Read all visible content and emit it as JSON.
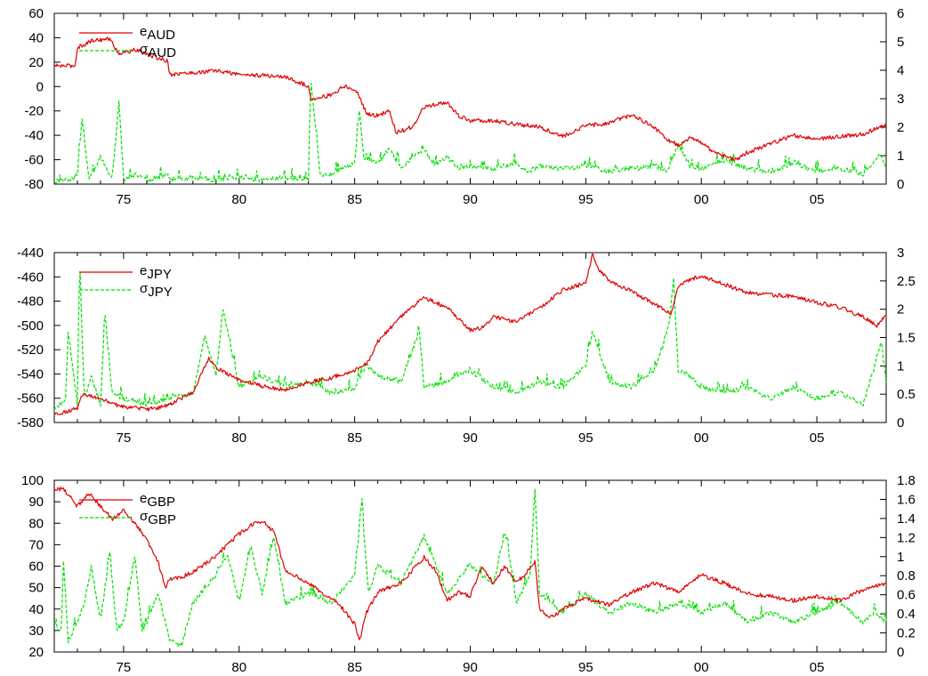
{
  "x_axis": {
    "min": 1972,
    "max": 2008,
    "ticks": [
      {
        "value": 1975,
        "label": "75"
      },
      {
        "value": 1980,
        "label": "80"
      },
      {
        "value": 1985,
        "label": "85"
      },
      {
        "value": 1990,
        "label": "90"
      },
      {
        "value": 1995,
        "label": "95"
      },
      {
        "value": 2000,
        "label": "00"
      },
      {
        "value": 2005,
        "label": "05"
      }
    ]
  },
  "colors": {
    "e": "#e00000",
    "sigma": "#00e000",
    "axis": "#000000"
  },
  "chart_data": [
    {
      "type": "line",
      "series": [
        {
          "name": "e_AUD",
          "symbol": "e",
          "sub": "AUD",
          "axis": "left",
          "style": "solid",
          "x": [
            1972,
            1972.9,
            1973,
            1973.7,
            1974.4,
            1974.8,
            1975.5,
            1976.4,
            1976.9,
            1977,
            1978.5,
            1979,
            1980,
            1981,
            1982,
            1983,
            1983.1,
            1984,
            1984.5,
            1985,
            1985.2,
            1985.5,
            1986,
            1986.5,
            1986.8,
            1987.5,
            1988,
            1989,
            1989.5,
            1990,
            1991,
            1992,
            1993,
            1994,
            1995,
            1996,
            1997,
            1998,
            1998.5,
            1999,
            1999.5,
            2000,
            2000.5,
            2001,
            2001.5,
            2002,
            2003,
            2004,
            2005,
            2006,
            2007,
            2007.5,
            2008
          ],
          "values": [
            17,
            17,
            32,
            38,
            39,
            27,
            30,
            24,
            21,
            10,
            12,
            13,
            10,
            9,
            8,
            0,
            -10,
            -7,
            0,
            -2,
            -8,
            -22,
            -24,
            -20,
            -38,
            -33,
            -17,
            -13,
            -24,
            -28,
            -28,
            -31,
            -33,
            -41,
            -32,
            -30,
            -23,
            -34,
            -43,
            -48,
            -42,
            -46,
            -53,
            -57,
            -60,
            -54,
            -47,
            -40,
            -43,
            -41,
            -39,
            -35,
            -32
          ]
        },
        {
          "name": "σ_AUD",
          "symbol": "σ",
          "sub": "AUD",
          "axis": "right",
          "style": "dashed",
          "x": [
            1972,
            1972.5,
            1973,
            1973.2,
            1973.5,
            1974,
            1974.5,
            1974.8,
            1975,
            1975.5,
            1976,
            1976.5,
            1976.9,
            1977,
            1978,
            1979,
            1980,
            1981,
            1982,
            1983,
            1983.1,
            1983.5,
            1984,
            1984.5,
            1985,
            1985.2,
            1985.4,
            1986,
            1986.5,
            1987,
            1987.5,
            1988,
            1988.5,
            1989,
            1989.5,
            1990,
            1991,
            1992,
            1992.5,
            1993,
            1994,
            1995,
            1996,
            1997,
            1998,
            1998.5,
            1999,
            1999.5,
            2000,
            2001,
            2002,
            2003,
            2004,
            2005,
            2006,
            2007,
            2007.7,
            2008
          ],
          "values": [
            0.05,
            0.1,
            0.2,
            2.3,
            0.1,
            0.9,
            0.1,
            2.9,
            0.1,
            0.3,
            0.1,
            0.2,
            0.3,
            0.1,
            0.2,
            0.1,
            0.2,
            0.1,
            0.2,
            0.1,
            3.6,
            0.3,
            0.3,
            0.5,
            0.7,
            2.6,
            0.9,
            0.7,
            1.2,
            0.5,
            0.9,
            1.2,
            0.6,
            0.9,
            0.5,
            0.6,
            0.5,
            0.7,
            0.4,
            0.6,
            0.5,
            0.6,
            0.4,
            0.5,
            0.6,
            0.4,
            1.3,
            0.6,
            0.5,
            0.8,
            0.5,
            0.4,
            0.7,
            0.4,
            0.5,
            0.3,
            1.0,
            0.6
          ]
        }
      ],
      "left_axis": {
        "min": -80,
        "max": 60,
        "ticks": [
          "-80",
          "-60",
          "-40",
          "-20",
          "0",
          "20",
          "40",
          "60"
        ]
      },
      "right_axis": {
        "min": 0,
        "max": 6,
        "ticks": [
          "0",
          "1",
          "2",
          "3",
          "4",
          "5",
          "6"
        ]
      }
    },
    {
      "type": "line",
      "series": [
        {
          "name": "e_JPY",
          "symbol": "e",
          "sub": "JPY",
          "axis": "left",
          "style": "solid",
          "x": [
            1972,
            1972.5,
            1973,
            1973.2,
            1974,
            1974.5,
            1975,
            1976,
            1976.5,
            1977,
            1978,
            1978.7,
            1979,
            1980,
            1981,
            1982,
            1983,
            1984,
            1985,
            1985.6,
            1985.8,
            1986,
            1987,
            1988,
            1989,
            1990,
            1990.5,
            1991,
            1992,
            1993,
            1994,
            1995,
            1995.3,
            1995.6,
            1996,
            1997,
            1998,
            1998.7,
            1999,
            1999.5,
            2000,
            2001,
            2002,
            2003,
            2004,
            2005,
            2006,
            2007,
            2007.6,
            2008
          ],
          "values": [
            -573,
            -571,
            -568,
            -557,
            -560,
            -565,
            -567,
            -569,
            -568,
            -565,
            -555,
            -527,
            -535,
            -545,
            -550,
            -553,
            -547,
            -543,
            -537,
            -530,
            -522,
            -513,
            -493,
            -477,
            -485,
            -504,
            -502,
            -493,
            -497,
            -486,
            -471,
            -465,
            -441,
            -455,
            -463,
            -472,
            -483,
            -490,
            -467,
            -462,
            -459,
            -466,
            -473,
            -475,
            -476,
            -481,
            -485,
            -493,
            -500,
            -492
          ]
        },
        {
          "name": "σ_JPY",
          "symbol": "σ",
          "sub": "JPY",
          "axis": "right",
          "style": "dashed",
          "x": [
            1972,
            1972.5,
            1972.6,
            1973,
            1973.1,
            1973.3,
            1973.6,
            1974,
            1974.2,
            1974.5,
            1975,
            1976,
            1977,
            1978,
            1978.5,
            1979,
            1979.3,
            1980,
            1981,
            1982,
            1983,
            1984,
            1985,
            1985.5,
            1986,
            1987,
            1987.8,
            1988,
            1989,
            1990,
            1991,
            1992,
            1993,
            1994,
            1995,
            1995.3,
            1996,
            1997,
            1998,
            1998.6,
            1998.8,
            1999,
            1999.5,
            2000,
            2001,
            2002,
            2003,
            2004,
            2005,
            2006,
            2007,
            2007.8,
            2008
          ],
          "values": [
            0.2,
            0.4,
            1.6,
            0.3,
            2.8,
            0.4,
            0.8,
            0.3,
            1.9,
            0.5,
            0.4,
            0.3,
            0.4,
            0.5,
            1.5,
            0.8,
            2.0,
            0.6,
            0.8,
            0.6,
            0.7,
            0.5,
            0.6,
            1.0,
            0.8,
            0.7,
            1.6,
            0.6,
            0.7,
            0.9,
            0.6,
            0.5,
            0.7,
            0.6,
            1.0,
            1.6,
            0.7,
            0.6,
            0.9,
            1.7,
            2.5,
            0.9,
            0.8,
            0.6,
            0.5,
            0.6,
            0.4,
            0.6,
            0.4,
            0.5,
            0.3,
            1.4,
            0.7
          ]
        }
      ],
      "left_axis": {
        "min": -580,
        "max": -440,
        "ticks": [
          "-580",
          "-560",
          "-540",
          "-520",
          "-500",
          "-480",
          "-460",
          "-440"
        ]
      },
      "right_axis": {
        "min": 0,
        "max": 3,
        "ticks": [
          "0",
          "0.5",
          "1",
          "1.5",
          "2",
          "2.5",
          "3"
        ]
      }
    },
    {
      "type": "line",
      "series": [
        {
          "name": "e_GBP",
          "symbol": "e",
          "sub": "GBP",
          "axis": "left",
          "style": "solid",
          "x": [
            1972,
            1972.4,
            1973,
            1973.5,
            1974,
            1974.5,
            1975,
            1975.5,
            1976,
            1976.5,
            1976.8,
            1977,
            1977.5,
            1978,
            1979,
            1979.5,
            1980,
            1980.5,
            1981,
            1981.5,
            1982,
            1982.5,
            1983,
            1983.5,
            1984,
            1984.5,
            1985,
            1985.2,
            1985.5,
            1986,
            1987,
            1987.5,
            1988,
            1988.5,
            1989,
            1989.5,
            1990,
            1990.5,
            1991,
            1991.5,
            1992,
            1992.5,
            1992.8,
            1993,
            1993.5,
            1994,
            1995,
            1996,
            1997,
            1998,
            1999,
            2000,
            2001,
            2002,
            2003,
            2004,
            2005,
            2006,
            2007,
            2008
          ],
          "values": [
            96,
            96,
            88,
            94,
            88,
            82,
            86,
            80,
            72,
            62,
            50,
            54,
            55,
            57,
            65,
            70,
            75,
            79,
            81,
            76,
            58,
            55,
            52,
            48,
            45,
            40,
            33,
            25,
            38,
            48,
            52,
            58,
            64,
            58,
            44,
            48,
            46,
            60,
            52,
            60,
            52,
            58,
            62,
            40,
            36,
            40,
            45,
            42,
            48,
            52,
            48,
            56,
            52,
            47,
            46,
            44,
            46,
            44,
            49,
            52
          ]
        },
        {
          "name": "σ_GBP",
          "symbol": "σ",
          "sub": "GBP",
          "axis": "right",
          "style": "dashed",
          "x": [
            1972,
            1972.3,
            1972.4,
            1972.6,
            1973,
            1973.3,
            1973.6,
            1974,
            1974.4,
            1974.7,
            1975,
            1975.5,
            1975.8,
            1976,
            1976.5,
            1977,
            1977.5,
            1978,
            1979,
            1979.5,
            1980,
            1980.5,
            1981,
            1981.5,
            1982,
            1983,
            1984,
            1985,
            1985.3,
            1985.6,
            1986,
            1987,
            1988,
            1989,
            1990,
            1991,
            1991.5,
            1992,
            1992.6,
            1992.8,
            1993,
            1994,
            1995,
            1996,
            1997,
            1998,
            1999,
            2000,
            2001,
            2002,
            2003,
            2004,
            2005,
            2006,
            2007,
            2007.5,
            2008
          ],
          "values": [
            0.3,
            0.2,
            0.95,
            0.1,
            0.3,
            0.5,
            0.9,
            0.3,
            1.05,
            0.2,
            0.3,
            1.0,
            0.2,
            0.3,
            0.6,
            0.1,
            0.05,
            0.5,
            0.8,
            1.0,
            0.5,
            1.1,
            0.6,
            1.2,
            0.5,
            0.6,
            0.5,
            0.8,
            1.55,
            0.6,
            0.9,
            0.7,
            1.2,
            0.6,
            0.9,
            0.7,
            1.25,
            0.5,
            0.8,
            1.7,
            0.6,
            0.4,
            0.6,
            0.4,
            0.5,
            0.4,
            0.5,
            0.4,
            0.5,
            0.3,
            0.4,
            0.3,
            0.4,
            0.5,
            0.3,
            0.4,
            0.3
          ]
        }
      ],
      "left_axis": {
        "min": 20,
        "max": 100,
        "ticks": [
          "20",
          "30",
          "40",
          "50",
          "60",
          "70",
          "80",
          "90",
          "100"
        ]
      },
      "right_axis": {
        "min": 0,
        "max": 1.8,
        "ticks": [
          "0",
          "0.2",
          "0.4",
          "0.6",
          "0.8",
          "1",
          "1.2",
          "1.4",
          "1.6",
          "1.8"
        ]
      }
    }
  ]
}
